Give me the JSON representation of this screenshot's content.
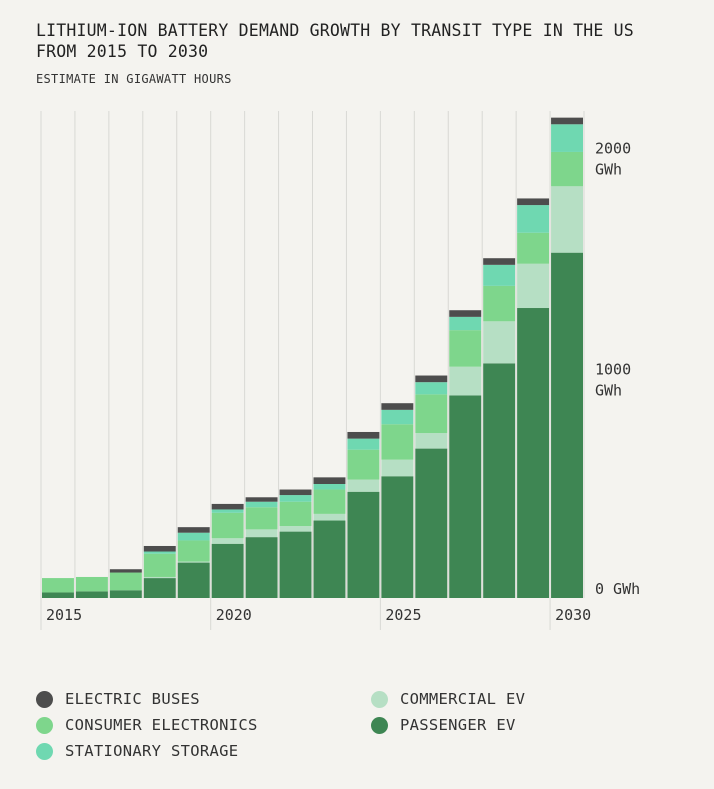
{
  "title": "LITHIUM-ION BATTERY DEMAND GROWTH BY TRANSIT TYPE IN THE US FROM 2015 TO 2030",
  "subtitle": "ESTIMATE IN GIGAWATT HOURS",
  "colors": {
    "background": "#f4f3ef",
    "gridline": "#d8d8d4",
    "electric_buses": "#4d4d4d",
    "consumer_electronics": "#7ed68c",
    "stationary_storage": "#6fd8b1",
    "commercial_ev": "#b6dfc4",
    "passenger_ev": "#3e8653"
  },
  "chart_data": {
    "type": "bar",
    "stacked": true,
    "title": "LITHIUM-ION BATTERY DEMAND GROWTH BY TRANSIT TYPE IN THE US FROM 2015 TO 2030",
    "subtitle": "ESTIMATE IN GIGAWATT HOURS",
    "categories": [
      "2015",
      "2016",
      "2017",
      "2018",
      "2019",
      "2020",
      "2021",
      "2022",
      "2023",
      "2024",
      "2025",
      "2026",
      "2027",
      "2028",
      "2029",
      "2030"
    ],
    "x_tick_labels": [
      "2015",
      "2020",
      "2025",
      "2030"
    ],
    "y_tick_labels": [
      {
        "value": 0,
        "label": "0 GWh"
      },
      {
        "value": 1000,
        "label": "1000 GWh"
      },
      {
        "value": 2000,
        "label": "2000 GWh"
      }
    ],
    "ylim": [
      0,
      2200
    ],
    "xlabel": "",
    "ylabel": "",
    "grid": true,
    "series": [
      {
        "name": "PASSENGER EV",
        "color_key": "passenger_ev",
        "values": [
          25,
          30,
          35,
          90,
          160,
          245,
          275,
          300,
          350,
          480,
          550,
          675,
          915,
          1060,
          1310,
          1560
        ]
      },
      {
        "name": "COMMERCIAL EV",
        "color_key": "commercial_ev",
        "values": [
          0,
          0,
          0,
          5,
          5,
          25,
          35,
          25,
          30,
          55,
          75,
          70,
          130,
          190,
          200,
          300
        ]
      },
      {
        "name": "CONSUMER ELECTRONICS",
        "color_key": "consumer_electronics",
        "values": [
          65,
          65,
          80,
          105,
          95,
          115,
          100,
          110,
          110,
          135,
          160,
          175,
          165,
          160,
          140,
          155
        ]
      },
      {
        "name": "STATIONARY STORAGE",
        "color_key": "stationary_storage",
        "values": [
          0,
          0,
          0,
          10,
          35,
          15,
          25,
          30,
          25,
          50,
          65,
          55,
          60,
          95,
          125,
          125
        ]
      },
      {
        "name": "ELECTRIC BUSES",
        "color_key": "electric_buses",
        "values": [
          0,
          0,
          15,
          25,
          25,
          25,
          20,
          25,
          30,
          30,
          30,
          30,
          30,
          30,
          30,
          30
        ]
      }
    ]
  },
  "legend": [
    {
      "label": "ELECTRIC BUSES",
      "color_key": "electric_buses"
    },
    {
      "label": "COMMERCIAL EV",
      "color_key": "commercial_ev"
    },
    {
      "label": "CONSUMER ELECTRONICS",
      "color_key": "consumer_electronics"
    },
    {
      "label": "PASSENGER EV",
      "color_key": "passenger_ev"
    },
    {
      "label": "STATIONARY STORAGE",
      "color_key": "stationary_storage"
    }
  ]
}
